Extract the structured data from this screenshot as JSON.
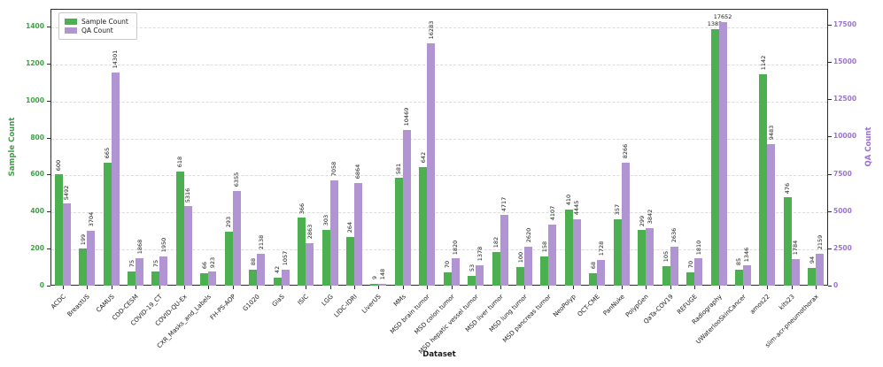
{
  "chart_data": {
    "type": "bar",
    "title": "",
    "xlabel": "Dataset",
    "ylabel_left": "Sample Count",
    "ylabel_right": "QA Count",
    "legend_position": "upper-left",
    "grid": "horizontal-dashed",
    "colors": {
      "sample_bar": "#4caf50",
      "qa_bar": "#b194d2",
      "left_axis_text": "#3fa044",
      "right_axis_text": "#9b72cf",
      "gridline": "#dcdcdc",
      "spine": "#2b2b2b"
    },
    "left_axis": {
      "ticks": [
        0,
        200,
        400,
        600,
        800,
        1000,
        1200,
        1400
      ],
      "ylim": [
        0,
        1400
      ]
    },
    "right_axis": {
      "ticks": [
        0,
        2500,
        5000,
        7500,
        10000,
        12500,
        15000,
        17500
      ],
      "ylim": [
        0,
        17500
      ]
    },
    "categories": [
      "ACDC",
      "BreastUS",
      "CAMUS",
      "CDD-CESM",
      "COVID-19_CT",
      "COVID-QU-Ex",
      "CXR_Masks_and_Labels",
      "FH-PS-AOP",
      "G1020",
      "GlaS",
      "ISIC",
      "LGG",
      "LIDC-IDRI",
      "LiverUS",
      "MMs",
      "MSD brain tumor",
      "MSD colon tumor",
      "MSD hepatic vessel tumor",
      "MSD liver tumor",
      "MSD lung tumor",
      "MSD pancreas tumor",
      "NeoPolyp",
      "OCT-CME",
      "PanNuke",
      "PolypGen",
      "QaTa-COV19",
      "REFUGE",
      "Radiography",
      "UWaterlooSkinCancer",
      "amos22",
      "kits23",
      "siim-acr-pneumothorax"
    ],
    "series": [
      {
        "name": "Sample Count",
        "axis": "left",
        "color": "#4caf50",
        "values": [
          600,
          199,
          665,
          75,
          75,
          618,
          66,
          293,
          88,
          42,
          366,
          303,
          264,
          9,
          581,
          642,
          70,
          53,
          182,
          100,
          158,
          410,
          68,
          357,
          299,
          105,
          70,
          1385,
          85,
          1142,
          476,
          94
        ]
      },
      {
        "name": "QA Count",
        "axis": "right",
        "color": "#b194d2",
        "values": [
          5492,
          3704,
          14301,
          1868,
          1950,
          5316,
          923,
          6355,
          2138,
          1057,
          2863,
          7058,
          6864,
          148,
          10469,
          16283,
          1820,
          1378,
          4717,
          2620,
          4107,
          4445,
          1728,
          8266,
          3842,
          2636,
          1810,
          17652,
          1346,
          9483,
          1784,
          2159
        ]
      }
    ],
    "horizontal_label_category": "Radiography"
  }
}
